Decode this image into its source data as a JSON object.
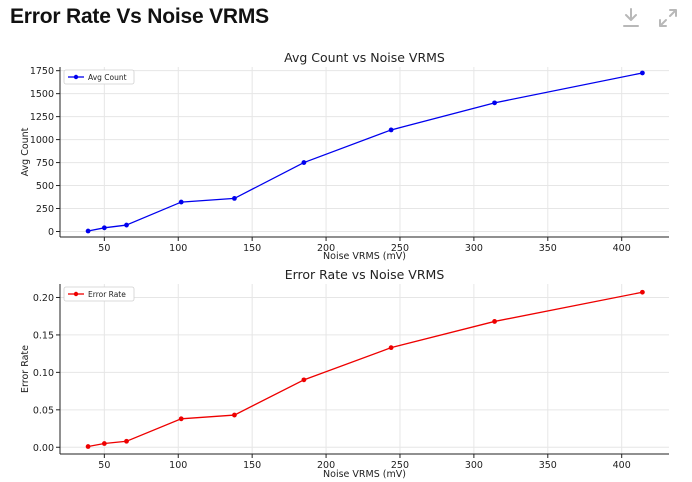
{
  "page": {
    "title": "Error Rate Vs Noise VRMS"
  },
  "toolbar": {
    "download_icon": "download-icon",
    "expand_icon": "expand-icon"
  },
  "colors": {
    "avg_count": "#0000ee",
    "error_rate": "#ee0000",
    "grid": "#e6e6e6",
    "title_text": "#111111"
  },
  "chart_data": [
    {
      "type": "line",
      "title": "Avg Count vs Noise VRMS",
      "xlabel": "Noise VRMS (mV)",
      "ylabel": "Avg Count",
      "xlim": [
        20,
        432
      ],
      "ylim": [
        -60,
        1790
      ],
      "xticks": [
        "50",
        "100",
        "150",
        "200",
        "250",
        "300",
        "350",
        "400"
      ],
      "yticks": [
        "0",
        "250",
        "500",
        "750",
        "1000",
        "1250",
        "1500",
        "1750"
      ],
      "grid": true,
      "legend_position": "top-left",
      "series": [
        {
          "name": "Avg Count",
          "color": "#0000ee",
          "x": [
            39,
            50,
            65,
            102,
            138,
            185,
            244,
            314,
            414
          ],
          "y": [
            5,
            40,
            70,
            320,
            360,
            750,
            1105,
            1400,
            1725
          ]
        }
      ]
    },
    {
      "type": "line",
      "title": "Error Rate vs Noise VRMS",
      "xlabel": "Noise VRMS (mV)",
      "ylabel": "Error Rate",
      "xlim": [
        20,
        432
      ],
      "ylim": [
        -0.009,
        0.218
      ],
      "xticks": [
        "50",
        "100",
        "150",
        "200",
        "250",
        "300",
        "350",
        "400"
      ],
      "yticks": [
        "0.00",
        "0.05",
        "0.10",
        "0.15",
        "0.20"
      ],
      "grid": true,
      "legend_position": "top-left",
      "series": [
        {
          "name": "Error Rate",
          "color": "#ee0000",
          "x": [
            39,
            50,
            65,
            102,
            138,
            185,
            244,
            314,
            414
          ],
          "y": [
            0.001,
            0.005,
            0.008,
            0.038,
            0.043,
            0.09,
            0.133,
            0.168,
            0.207
          ]
        }
      ]
    }
  ]
}
